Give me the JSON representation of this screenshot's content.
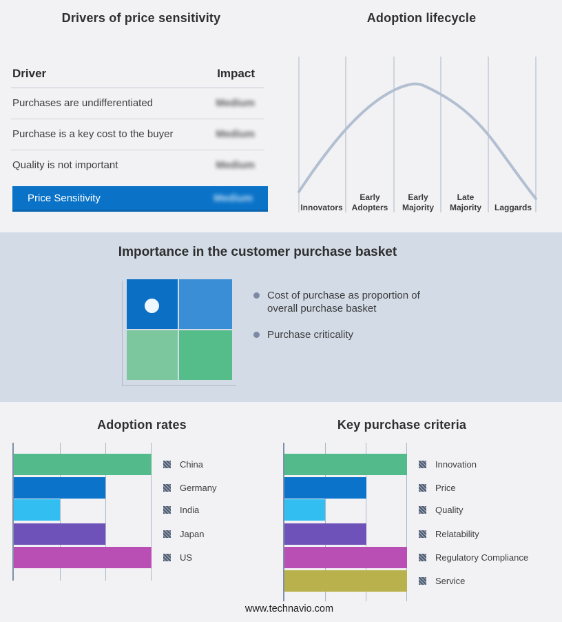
{
  "page": {
    "footer_url": "www.technavio.com",
    "colors": {
      "background": "#f2f2f4",
      "band_background": "#d2dbe6",
      "accent_blue": "#0a73c8"
    }
  },
  "drivers_table": {
    "title": "Drivers of price sensitivity",
    "header": {
      "driver": "Driver",
      "impact": "Impact"
    },
    "rows": [
      {
        "driver": "Purchases are undifferentiated",
        "impact": "Medium"
      },
      {
        "driver": "Purchase is a key cost to the buyer",
        "impact": "Medium"
      },
      {
        "driver": "Quality is not important",
        "impact": "Medium"
      }
    ],
    "summary": {
      "label": "Price Sensitivity",
      "impact": "Medium"
    }
  },
  "lifecycle": {
    "title": "Adoption lifecycle",
    "curve_color": "#b2bfd1",
    "stages": [
      {
        "lines": [
          "Innovators",
          ""
        ]
      },
      {
        "lines": [
          "Early",
          "Adopters"
        ]
      },
      {
        "lines": [
          "Early",
          "Majority"
        ]
      },
      {
        "lines": [
          "Late",
          "Majority"
        ]
      },
      {
        "lines": [
          "Laggards",
          ""
        ]
      }
    ]
  },
  "basket": {
    "title": "Importance in the customer purchase basket",
    "bullets": [
      {
        "lines": [
          "Cost of purchase as proportion of",
          "overall purchase basket"
        ]
      },
      {
        "lines": [
          "Purchase criticality"
        ]
      }
    ],
    "quadrant_colors": {
      "top_left": "#0b6fc4",
      "top_right": "#3a8ed6",
      "bottom_left": "#7dc79e",
      "bottom_right": "#55bd8a"
    }
  },
  "adoption_rates": {
    "title": "Adoption rates",
    "max_value": 3,
    "items": [
      {
        "label": "China",
        "value": 3,
        "color": "#53ba8b"
      },
      {
        "label": "Germany",
        "value": 2,
        "color": "#0b74ca"
      },
      {
        "label": "India",
        "value": 1,
        "color": "#33bef2"
      },
      {
        "label": "Japan",
        "value": 2,
        "color": "#6e52ba"
      },
      {
        "label": "US",
        "value": 3,
        "color": "#b94fb4"
      }
    ]
  },
  "purchase_criteria": {
    "title": "Key purchase criteria",
    "max_value": 3,
    "items": [
      {
        "label": "Innovation",
        "value": 3,
        "color": "#53ba8b"
      },
      {
        "label": "Price",
        "value": 2,
        "color": "#0b74ca"
      },
      {
        "label": "Quality",
        "value": 1,
        "color": "#33bef2"
      },
      {
        "label": "Relatability",
        "value": 2,
        "color": "#6e52ba"
      },
      {
        "label": "Regulatory Compliance",
        "value": 3,
        "color": "#b94fb4"
      },
      {
        "label": "Service",
        "value": 3,
        "color": "#b9b14b"
      }
    ]
  },
  "chart_data": [
    {
      "type": "line",
      "title": "Adoption lifecycle",
      "shape": "bell curve",
      "x_categories": [
        "Innovators",
        "Early Adopters",
        "Early Majority",
        "Late Majority",
        "Laggards"
      ],
      "peak_stage": "Early Majority",
      "grid": "vertical stage-separator lines, no y axis, no numeric labels",
      "curve_color": "#b2bfd1"
    },
    {
      "type": "bar",
      "orientation": "horizontal",
      "title": "Adoption rates",
      "categories": [
        "China",
        "Germany",
        "India",
        "Japan",
        "US"
      ],
      "values": [
        3,
        2,
        1,
        2,
        3
      ],
      "value_units": "gridline units (unlabeled axis, 3 gridlines, max 3)",
      "colors": [
        "#53ba8b",
        "#0b74ca",
        "#33bef2",
        "#6e52ba",
        "#b94fb4"
      ],
      "legend_position": "right",
      "xlim": [
        0,
        3
      ],
      "grid": true
    },
    {
      "type": "bar",
      "orientation": "horizontal",
      "title": "Key purchase criteria",
      "categories": [
        "Innovation",
        "Price",
        "Quality",
        "Relatability",
        "Regulatory Compliance",
        "Service"
      ],
      "values": [
        3,
        2,
        1,
        2,
        3,
        3
      ],
      "value_units": "gridline units (unlabeled axis, 3 gridlines, max 3)",
      "colors": [
        "#53ba8b",
        "#0b74ca",
        "#33bef2",
        "#6e52ba",
        "#b94fb4",
        "#b9b14b"
      ],
      "legend_position": "right",
      "xlim": [
        0,
        3
      ],
      "grid": true
    }
  ]
}
